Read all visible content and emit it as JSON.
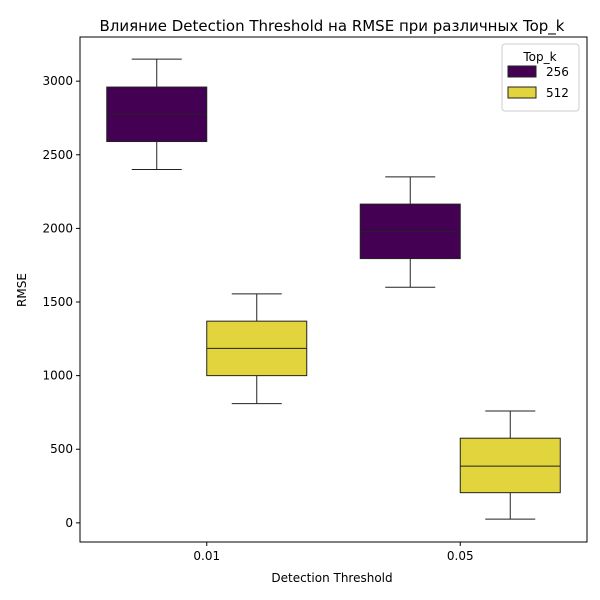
{
  "chart_data": {
    "type": "box",
    "title": "Влияние Detection Threshold на RMSE при различных Top_k",
    "xlabel": "Detection Threshold",
    "ylabel": "RMSE",
    "categories": [
      "0.01",
      "0.05"
    ],
    "ylim": [
      -130,
      3300
    ],
    "yticks": [
      0,
      500,
      1000,
      1500,
      2000,
      2500,
      3000
    ],
    "legend": {
      "title": "Top_k",
      "position": "top-right"
    },
    "series": [
      {
        "name": "256",
        "color": "#440154",
        "boxes": [
          {
            "category": "0.01",
            "whisker_low": 2400,
            "q1": 2590,
            "median": 2775,
            "q3": 2960,
            "whisker_high": 3150
          },
          {
            "category": "0.05",
            "whisker_low": 1600,
            "q1": 1795,
            "median": 1980,
            "q3": 2165,
            "whisker_high": 2350
          }
        ]
      },
      {
        "name": "512",
        "color": "#e2d43c",
        "boxes": [
          {
            "category": "0.01",
            "whisker_low": 810,
            "q1": 1000,
            "median": 1185,
            "q3": 1370,
            "whisker_high": 1555
          },
          {
            "category": "0.05",
            "whisker_low": 25,
            "q1": 205,
            "median": 385,
            "q3": 575,
            "whisker_high": 760
          }
        ]
      }
    ]
  }
}
